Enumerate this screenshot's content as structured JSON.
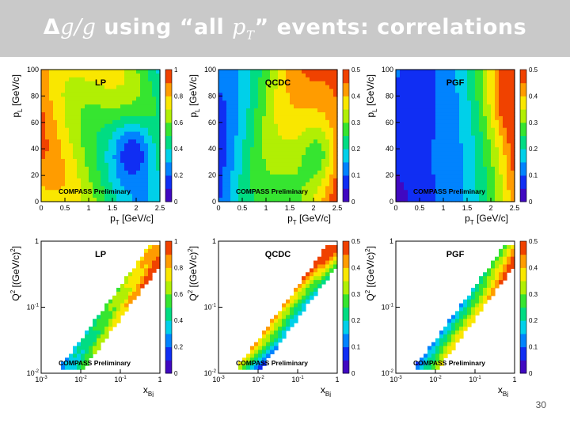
{
  "slide": {
    "title": {
      "part1": "Δ",
      "part2": "g/g",
      "part3": " using “all ",
      "part4": "p",
      "part5": "T",
      "part6": "” events: correlations"
    },
    "page_number": "30"
  },
  "colors": {
    "title_bar": "#c9c9c9",
    "title_text": "#ffffff"
  },
  "chart_data": [
    {
      "type": "heatmap",
      "label": "LP",
      "watermark": "COMPASS Preliminary",
      "xlabel": "p",
      "xlabel_sub": "T",
      "xlabel_unit": " [GeV/c]",
      "ylabel": "p",
      "ylabel_sub": "L",
      "ylabel_unit": " [GeV/c]",
      "xlim": [
        0,
        2.5
      ],
      "ylim": [
        0,
        100
      ],
      "xticks": [
        "0",
        "0.5",
        "1",
        "1.5",
        "2",
        "2.5"
      ],
      "yticks": [
        "0",
        "20",
        "40",
        "60",
        "80",
        "100"
      ],
      "zlim": [
        0,
        1
      ],
      "zticks": [
        "0",
        "0.2",
        "0.4",
        "0.6",
        "0.8",
        "1"
      ],
      "log": false
    },
    {
      "type": "heatmap",
      "label": "QCDC",
      "watermark": "COMPASS Preliminary",
      "xlabel": "p",
      "xlabel_sub": "T",
      "xlabel_unit": " [GeV/c]",
      "ylabel": "p",
      "ylabel_sub": "L",
      "ylabel_unit": " [GeV/c]",
      "xlim": [
        0,
        2.5
      ],
      "ylim": [
        0,
        100
      ],
      "xticks": [
        "0",
        "0.5",
        "1",
        "1.5",
        "2",
        "2.5"
      ],
      "yticks": [
        "0",
        "20",
        "40",
        "60",
        "80",
        "100"
      ],
      "zlim": [
        0,
        0.5
      ],
      "zticks": [
        "0",
        "0.1",
        "0.2",
        "0.3",
        "0.4",
        "0.5"
      ],
      "log": false
    },
    {
      "type": "heatmap",
      "label": "PGF",
      "watermark": "COMPASS Preliminary",
      "xlabel": "p",
      "xlabel_sub": "T",
      "xlabel_unit": " [GeV/c]",
      "ylabel": "p",
      "ylabel_sub": "L",
      "ylabel_unit": " [GeV/c]",
      "xlim": [
        0,
        2.5
      ],
      "ylim": [
        0,
        100
      ],
      "xticks": [
        "0",
        "0.5",
        "1",
        "1.5",
        "2",
        "2.5"
      ],
      "yticks": [
        "0",
        "20",
        "40",
        "60",
        "80",
        "100"
      ],
      "zlim": [
        0,
        0.5
      ],
      "zticks": [
        "0",
        "0.1",
        "0.2",
        "0.3",
        "0.4",
        "0.5"
      ],
      "log": false
    },
    {
      "type": "heatmap",
      "label": "LP",
      "watermark": "COMPASS Preliminary",
      "xlabel": "x",
      "xlabel_sub": "Bj",
      "xlabel_unit": "",
      "ylabel": "Q",
      "ylabel_sup": "2",
      "ylabel_unit": " [(GeV/c)",
      "ylabel_unit_sup": "2",
      "ylabel_unit_end": "]",
      "xlim": [
        0.001,
        1
      ],
      "ylim": [
        0.01,
        1
      ],
      "xticks": [
        "10",
        "10",
        "10",
        "1"
      ],
      "xtick_exp": [
        "-3",
        "-2",
        "-1",
        ""
      ],
      "yticks": [
        "10",
        "10",
        "1"
      ],
      "ytick_exp": [
        "-2",
        "-1",
        ""
      ],
      "zlim": [
        0,
        1
      ],
      "zticks": [
        "0",
        "0.2",
        "0.4",
        "0.6",
        "0.8",
        "1"
      ],
      "log": true
    },
    {
      "type": "heatmap",
      "label": "QCDC",
      "watermark": "COMPASS Preliminary",
      "xlabel": "x",
      "xlabel_sub": "Bj",
      "xlabel_unit": "",
      "ylabel": "Q",
      "ylabel_sup": "2",
      "ylabel_unit": " [(GeV/c)",
      "ylabel_unit_sup": "2",
      "ylabel_unit_end": "]",
      "xlim": [
        0.001,
        1
      ],
      "ylim": [
        0.01,
        1
      ],
      "xticks": [
        "10",
        "10",
        "10",
        "1"
      ],
      "xtick_exp": [
        "-3",
        "-2",
        "-1",
        ""
      ],
      "yticks": [
        "10",
        "10",
        "1"
      ],
      "ytick_exp": [
        "-2",
        "-1",
        ""
      ],
      "zlim": [
        0,
        0.5
      ],
      "zticks": [
        "0",
        "0.1",
        "0.2",
        "0.3",
        "0.4",
        "0.5"
      ],
      "log": true
    },
    {
      "type": "heatmap",
      "label": "PGF",
      "watermark": "COMPASS Preliminary",
      "xlabel": "x",
      "xlabel_sub": "Bj",
      "xlabel_unit": "",
      "ylabel": "Q",
      "ylabel_sup": "2",
      "ylabel_unit": " [(GeV/c)",
      "ylabel_unit_sup": "2",
      "ylabel_unit_end": "]",
      "xlim": [
        0.001,
        1
      ],
      "ylim": [
        0.01,
        1
      ],
      "xticks": [
        "10",
        "10",
        "10",
        "1"
      ],
      "xtick_exp": [
        "-3",
        "-2",
        "-1",
        ""
      ],
      "yticks": [
        "10",
        "10",
        "1"
      ],
      "ytick_exp": [
        "-2",
        "-1",
        ""
      ],
      "zlim": [
        0,
        0.5
      ],
      "zticks": [
        "0",
        "0.1",
        "0.2",
        "0.3",
        "0.4",
        "0.5"
      ],
      "log": true
    }
  ]
}
